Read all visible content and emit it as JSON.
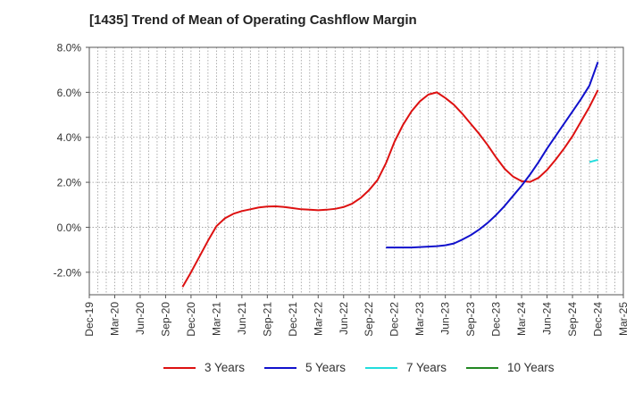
{
  "title": "[1435]  Trend of Mean of Operating Cashflow Margin",
  "chart_data": {
    "type": "line",
    "title": "[1435]  Trend of Mean of Operating Cashflow Margin",
    "ylim": [
      -3.0,
      8.0
    ],
    "y_ticks": [
      -2.0,
      0.0,
      2.0,
      4.0,
      6.0,
      8.0
    ],
    "y_tick_labels": [
      "-2.0%",
      "0.0%",
      "2.0%",
      "4.0%",
      "6.0%",
      "8.0%"
    ],
    "x_range": [
      "2019-12",
      "2025-03"
    ],
    "x_tick_labels": [
      "Dec-19",
      "Mar-20",
      "Jun-20",
      "Sep-20",
      "Dec-20",
      "Mar-21",
      "Jun-21",
      "Sep-21",
      "Dec-21",
      "Mar-22",
      "Jun-22",
      "Sep-22",
      "Dec-22",
      "Mar-23",
      "Jun-23",
      "Sep-23",
      "Dec-23",
      "Mar-24",
      "Jun-24",
      "Sep-24",
      "Dec-24",
      "Mar-25"
    ],
    "grid": true,
    "legend_position": "bottom",
    "series": [
      {
        "name": "3 Years",
        "color": "#dd1111",
        "points": [
          [
            "2020-11",
            -2.65
          ],
          [
            "2020-12",
            -2.0
          ],
          [
            "2021-01",
            -1.3
          ],
          [
            "2021-02",
            -0.6
          ],
          [
            "2021-03",
            0.05
          ],
          [
            "2021-04",
            0.4
          ],
          [
            "2021-05",
            0.6
          ],
          [
            "2021-06",
            0.72
          ],
          [
            "2021-07",
            0.8
          ],
          [
            "2021-08",
            0.88
          ],
          [
            "2021-09",
            0.92
          ],
          [
            "2021-10",
            0.93
          ],
          [
            "2021-11",
            0.9
          ],
          [
            "2021-12",
            0.85
          ],
          [
            "2022-01",
            0.8
          ],
          [
            "2022-02",
            0.78
          ],
          [
            "2022-03",
            0.76
          ],
          [
            "2022-04",
            0.78
          ],
          [
            "2022-05",
            0.82
          ],
          [
            "2022-06",
            0.9
          ],
          [
            "2022-07",
            1.05
          ],
          [
            "2022-08",
            1.3
          ],
          [
            "2022-09",
            1.65
          ],
          [
            "2022-10",
            2.1
          ],
          [
            "2022-11",
            2.85
          ],
          [
            "2022-12",
            3.8
          ],
          [
            "2023-01",
            4.55
          ],
          [
            "2023-02",
            5.15
          ],
          [
            "2023-03",
            5.6
          ],
          [
            "2023-04",
            5.9
          ],
          [
            "2023-05",
            6.0
          ],
          [
            "2023-06",
            5.75
          ],
          [
            "2023-07",
            5.45
          ],
          [
            "2023-08",
            5.05
          ],
          [
            "2023-09",
            4.6
          ],
          [
            "2023-10",
            4.15
          ],
          [
            "2023-11",
            3.65
          ],
          [
            "2023-12",
            3.1
          ],
          [
            "2024-01",
            2.6
          ],
          [
            "2024-02",
            2.25
          ],
          [
            "2024-03",
            2.05
          ],
          [
            "2024-04",
            2.02
          ],
          [
            "2024-05",
            2.2
          ],
          [
            "2024-06",
            2.55
          ],
          [
            "2024-07",
            3.0
          ],
          [
            "2024-08",
            3.5
          ],
          [
            "2024-09",
            4.05
          ],
          [
            "2024-10",
            4.7
          ],
          [
            "2024-11",
            5.35
          ],
          [
            "2024-12",
            6.1
          ]
        ]
      },
      {
        "name": "5 Years",
        "color": "#1111cc",
        "points": [
          [
            "2022-11",
            -0.9
          ],
          [
            "2022-12",
            -0.9
          ],
          [
            "2023-01",
            -0.9
          ],
          [
            "2023-02",
            -0.9
          ],
          [
            "2023-03",
            -0.88
          ],
          [
            "2023-04",
            -0.86
          ],
          [
            "2023-05",
            -0.84
          ],
          [
            "2023-06",
            -0.8
          ],
          [
            "2023-07",
            -0.72
          ],
          [
            "2023-08",
            -0.55
          ],
          [
            "2023-09",
            -0.35
          ],
          [
            "2023-10",
            -0.1
          ],
          [
            "2023-11",
            0.2
          ],
          [
            "2023-12",
            0.55
          ],
          [
            "2024-01",
            0.95
          ],
          [
            "2024-02",
            1.4
          ],
          [
            "2024-03",
            1.85
          ],
          [
            "2024-04",
            2.35
          ],
          [
            "2024-05",
            2.9
          ],
          [
            "2024-06",
            3.5
          ],
          [
            "2024-07",
            4.05
          ],
          [
            "2024-08",
            4.6
          ],
          [
            "2024-09",
            5.15
          ],
          [
            "2024-10",
            5.7
          ],
          [
            "2024-11",
            6.3
          ],
          [
            "2024-12",
            7.35
          ]
        ]
      },
      {
        "name": "7 Years",
        "color": "#22dddd",
        "points": [
          [
            "2024-11",
            2.9
          ],
          [
            "2024-12",
            3.0
          ]
        ]
      },
      {
        "name": "10 Years",
        "color": "#228822",
        "points": []
      }
    ]
  }
}
